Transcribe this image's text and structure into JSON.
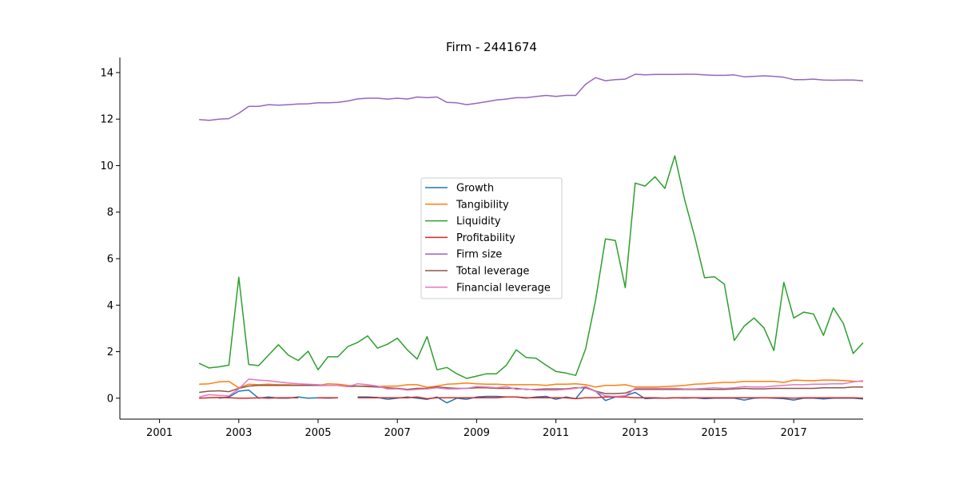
{
  "chart_data": {
    "type": "line",
    "title": "Firm - 2441674",
    "xlabel": "",
    "ylabel": "",
    "xlim": [
      2000,
      2018.75
    ],
    "ylim": [
      -0.9,
      14.65
    ],
    "x_ticks": [
      2001,
      2003,
      2005,
      2007,
      2009,
      2011,
      2013,
      2015,
      2017
    ],
    "y_ticks": [
      0,
      2,
      4,
      6,
      8,
      10,
      12,
      14
    ],
    "grid": false,
    "legend_position": "center",
    "x": [
      2002.0,
      2002.25,
      2002.5,
      2002.75,
      2003.0,
      2003.25,
      2003.5,
      2003.75,
      2004.0,
      2004.25,
      2004.5,
      2004.75,
      2005.0,
      2005.25,
      2005.5,
      2005.75,
      2006.0,
      2006.25,
      2006.5,
      2006.75,
      2007.0,
      2007.25,
      2007.5,
      2007.75,
      2008.0,
      2008.25,
      2008.5,
      2008.75,
      2009.0,
      2009.25,
      2009.5,
      2009.75,
      2010.0,
      2010.25,
      2010.5,
      2010.75,
      2011.0,
      2011.25,
      2011.5,
      2011.75,
      2012.0,
      2012.25,
      2012.5,
      2012.75,
      2013.0,
      2013.25,
      2013.5,
      2013.75,
      2014.0,
      2014.25,
      2014.5,
      2014.75,
      2015.0,
      2015.25,
      2015.5,
      2015.75,
      2016.0,
      2016.25,
      2016.5,
      2016.75,
      2017.0,
      2017.25,
      2017.5,
      2017.75,
      2018.0,
      2018.25,
      2018.5,
      2018.75
    ],
    "series": [
      {
        "name": "Growth",
        "color": "#1f77b4",
        "values": [
          null,
          null,
          0.0,
          0.05,
          0.3,
          0.35,
          0.0,
          0.05,
          0.0,
          0.0,
          0.05,
          0.0,
          0.02,
          0.0,
          0.02,
          null,
          0.05,
          0.05,
          0.03,
          -0.05,
          0.0,
          0.05,
          0.0,
          -0.05,
          0.05,
          -0.2,
          0.0,
          -0.05,
          0.05,
          0.08,
          0.08,
          0.05,
          0.05,
          0.0,
          0.05,
          0.08,
          -0.05,
          0.05,
          -0.02,
          0.5,
          0.3,
          -0.1,
          0.05,
          0.1,
          0.25,
          -0.02,
          0.0,
          0.0,
          0.02,
          0.0,
          0.02,
          -0.02,
          0.0,
          0.0,
          0.0,
          -0.08,
          0.0,
          0.02,
          0.0,
          -0.02,
          -0.08,
          0.0,
          0.0,
          -0.03,
          0.0,
          0.0,
          0.0,
          -0.03
        ]
      },
      {
        "name": "Tangibility",
        "color": "#ff7f0e",
        "values": [
          0.6,
          0.62,
          0.7,
          0.72,
          0.45,
          0.6,
          0.58,
          0.6,
          0.58,
          0.58,
          0.56,
          0.58,
          0.55,
          0.62,
          0.6,
          0.55,
          0.52,
          0.52,
          0.5,
          0.52,
          0.52,
          0.58,
          0.58,
          0.47,
          0.52,
          0.6,
          0.62,
          0.65,
          0.62,
          0.6,
          0.6,
          0.58,
          0.58,
          0.58,
          0.58,
          0.55,
          0.6,
          0.6,
          0.62,
          0.58,
          0.48,
          0.55,
          0.55,
          0.58,
          0.48,
          0.48,
          0.48,
          0.5,
          0.52,
          0.55,
          0.6,
          0.62,
          0.65,
          0.68,
          0.68,
          0.72,
          0.72,
          0.72,
          0.72,
          0.68,
          0.78,
          0.76,
          0.75,
          0.78,
          0.78,
          0.76,
          0.73,
          0.72
        ]
      },
      {
        "name": "Liquidity",
        "color": "#2ca02c",
        "values": [
          1.5,
          1.3,
          1.35,
          1.42,
          5.2,
          1.45,
          1.4,
          1.85,
          2.3,
          1.85,
          1.62,
          2.02,
          1.22,
          1.78,
          1.78,
          2.22,
          2.4,
          2.68,
          2.15,
          2.32,
          2.58,
          2.08,
          1.68,
          2.65,
          1.22,
          1.32,
          1.05,
          0.85,
          0.95,
          1.05,
          1.05,
          1.42,
          2.08,
          1.75,
          1.72,
          1.42,
          1.15,
          1.08,
          0.98,
          2.12,
          4.2,
          6.85,
          6.78,
          4.75,
          9.25,
          9.12,
          9.52,
          9.02,
          10.42,
          8.52,
          6.95,
          5.18,
          5.22,
          4.9,
          2.48,
          3.1,
          3.45,
          3.02,
          2.05,
          4.98,
          3.45,
          3.7,
          3.62,
          2.7,
          3.88,
          3.22,
          1.92,
          2.38
        ]
      },
      {
        "name": "Profitability",
        "color": "#d62728",
        "values": [
          0.0,
          0.02,
          0.03,
          0.02,
          0.0,
          0.0,
          0.02,
          0.0,
          0.02,
          0.02,
          0.02,
          null,
          0.02,
          0.02,
          0.02,
          null,
          0.02,
          0.02,
          0.02,
          0.02,
          0.02,
          0.02,
          0.05,
          -0.02,
          0.02,
          0.02,
          0.02,
          0.02,
          0.02,
          0.02,
          0.02,
          0.05,
          0.05,
          0.02,
          0.02,
          0.02,
          0.02,
          0.02,
          -0.02,
          0.02,
          0.02,
          0.05,
          0.05,
          0.05,
          0.02,
          0.02,
          0.02,
          0.0,
          0.02,
          0.02,
          0.02,
          0.02,
          0.02,
          0.02,
          0.02,
          0.02,
          0.02,
          0.02,
          0.02,
          0.02,
          0.0,
          0.02,
          0.02,
          0.02,
          0.02,
          0.02,
          0.02,
          0.0
        ]
      },
      {
        "name": "Firm size",
        "color": "#9467bd",
        "values": [
          11.98,
          11.95,
          12.0,
          12.02,
          12.25,
          12.55,
          12.55,
          12.62,
          12.6,
          12.62,
          12.65,
          12.66,
          12.7,
          12.7,
          12.72,
          12.78,
          12.87,
          12.9,
          12.9,
          12.86,
          12.9,
          12.86,
          12.95,
          12.92,
          12.95,
          12.72,
          12.7,
          12.62,
          12.68,
          12.75,
          12.82,
          12.86,
          12.92,
          12.92,
          12.97,
          13.02,
          12.98,
          13.02,
          13.02,
          13.5,
          13.78,
          13.65,
          13.7,
          13.72,
          13.93,
          13.9,
          13.92,
          13.92,
          13.92,
          13.93,
          13.93,
          13.9,
          13.88,
          13.88,
          13.9,
          13.82,
          13.84,
          13.86,
          13.84,
          13.8,
          13.7,
          13.7,
          13.72,
          13.68,
          13.67,
          13.68,
          13.68,
          13.65
        ]
      },
      {
        "name": "Total leverage",
        "color": "#8c564b",
        "values": [
          0.25,
          0.3,
          0.32,
          0.28,
          0.42,
          0.52,
          0.55,
          0.55,
          0.55,
          0.55,
          0.55,
          0.55,
          0.55,
          0.55,
          0.55,
          0.5,
          0.52,
          0.5,
          0.48,
          0.45,
          0.42,
          0.38,
          0.42,
          0.42,
          0.48,
          0.45,
          0.42,
          0.42,
          0.45,
          0.45,
          0.42,
          0.42,
          0.42,
          0.38,
          0.38,
          0.4,
          0.4,
          0.4,
          0.45,
          0.45,
          0.3,
          0.2,
          0.2,
          0.22,
          0.38,
          0.38,
          0.38,
          0.38,
          0.38,
          0.38,
          0.38,
          0.38,
          0.38,
          0.38,
          0.4,
          0.42,
          0.4,
          0.4,
          0.42,
          0.42,
          0.42,
          0.42,
          0.42,
          0.45,
          0.45,
          0.45,
          0.48,
          0.48
        ]
      },
      {
        "name": "Financial leverage",
        "color": "#e377c2",
        "values": [
          0.05,
          0.15,
          0.12,
          0.1,
          0.4,
          0.82,
          0.78,
          0.75,
          0.7,
          0.65,
          0.62,
          0.6,
          0.58,
          0.55,
          0.55,
          0.5,
          0.62,
          0.58,
          0.52,
          0.4,
          0.4,
          0.35,
          0.38,
          0.4,
          0.45,
          0.4,
          0.4,
          0.42,
          0.5,
          0.48,
          0.45,
          0.5,
          0.38,
          0.4,
          0.35,
          0.35,
          0.35,
          0.38,
          0.42,
          0.5,
          0.28,
          0.1,
          0.08,
          0.1,
          0.42,
          0.42,
          0.42,
          0.42,
          0.42,
          0.4,
          0.4,
          0.42,
          0.45,
          0.42,
          0.45,
          0.5,
          0.48,
          0.48,
          0.52,
          0.55,
          0.58,
          0.58,
          0.6,
          0.6,
          0.62,
          0.62,
          0.7,
          0.75
        ]
      }
    ]
  }
}
